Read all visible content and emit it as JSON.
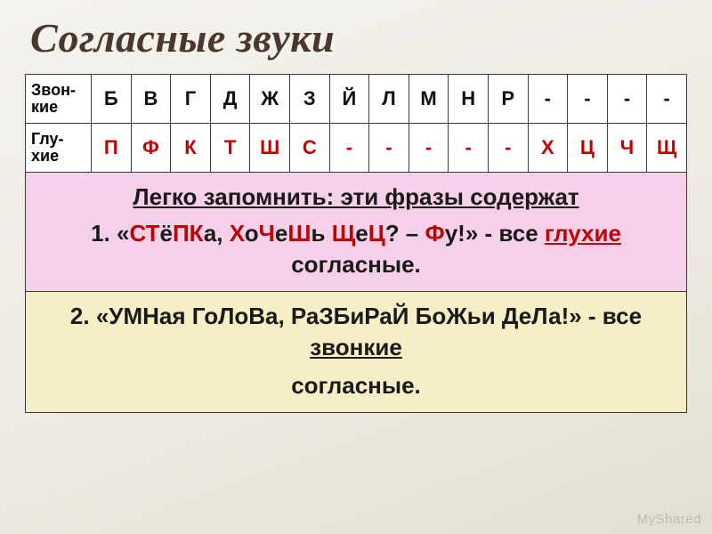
{
  "title": "Согласные звуки",
  "title_fontsize": 46,
  "title_color": "#4b372b",
  "table": {
    "border_color": "#3a3a3a",
    "cell_bg": "#ffffff",
    "header_fontsize": 18,
    "cell_fontsize": 22,
    "rows": [
      {
        "label": "Звон-\nкие",
        "color": "#111111",
        "cells": [
          "Б",
          "В",
          "Г",
          "Д",
          "Ж",
          "З",
          "Й",
          "Л",
          "М",
          "Н",
          "Р",
          "-",
          "-",
          "-",
          "-"
        ]
      },
      {
        "label": "Глу-\nхие",
        "color": "#c00000",
        "cells": [
          "П",
          "Ф",
          "К",
          "Т",
          "Ш",
          "С",
          "-",
          "-",
          "-",
          "-",
          "-",
          "Х",
          "Ц",
          "Ч",
          "Щ"
        ]
      }
    ]
  },
  "memo": {
    "lead": "Легко запомнить: эти фразы содержат",
    "lead_fontsize": 26,
    "items": [
      {
        "bg": "#f6cfe8",
        "fontsize": 26,
        "prefix": "1. «",
        "highlights": [
          {
            "t": "СТ",
            "hl": true
          },
          {
            "t": "ё",
            "hl": false
          },
          {
            "t": "ПК",
            "hl": true
          },
          {
            "t": "а, ",
            "hl": false
          },
          {
            "t": "Х",
            "hl": true
          },
          {
            "t": "о",
            "hl": false
          },
          {
            "t": "Ч",
            "hl": true
          },
          {
            "t": "е",
            "hl": false
          },
          {
            "t": "Ш",
            "hl": true
          },
          {
            "t": "ь ",
            "hl": false
          },
          {
            "t": "Щ",
            "hl": true
          },
          {
            "t": "е",
            "hl": false
          },
          {
            "t": "Ц",
            "hl": true
          },
          {
            "t": "? – ",
            "hl": false
          },
          {
            "t": "Ф",
            "hl": true
          },
          {
            "t": "у!",
            "hl": false
          }
        ],
        "suffix": "» - все ",
        "keyword": "глухие",
        "after_keyword": " согласные."
      },
      {
        "bg": "#f6efc5",
        "fontsize": 26,
        "prefix": "2. «УМНая ГоЛоВа, РаЗБиРаЙ БоЖьи ДеЛа!» - все ",
        "highlights": [],
        "suffix": "",
        "keyword": "звонкие",
        "after_keyword": " согласные."
      }
    ]
  },
  "watermark": "MyShared"
}
